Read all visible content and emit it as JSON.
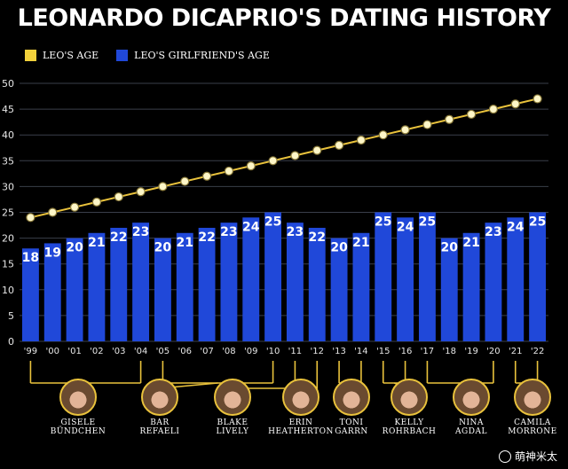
{
  "title": "LEONARDO DICAPRIO'S DATING HISTORY",
  "legend": {
    "leo_label": "LEO'S AGE",
    "gf_label": "LEO'S GIRLFRIEND'S AGE"
  },
  "colors": {
    "leo_line": "#e9c23c",
    "leo_marker_fill": "#fff7c8",
    "bar": "#2048d9",
    "bracket": "#e9c23c",
    "background": "#000000"
  },
  "chart_data": {
    "type": "bar",
    "title": "LEONARDO DICAPRIO'S DATING HISTORY",
    "categories": [
      "'99",
      "'00",
      "'01",
      "'02",
      "'03",
      "'04",
      "'05",
      "'06",
      "'07",
      "'08",
      "'09",
      "'10",
      "'11",
      "'12",
      "'13",
      "'14",
      "'15",
      "'16",
      "'17",
      "'18",
      "'19",
      "'20",
      "'21",
      "'22"
    ],
    "series": [
      {
        "name": "LEO'S GIRLFRIEND'S AGE",
        "type": "bar",
        "values": [
          18,
          19,
          20,
          21,
          22,
          23,
          20,
          21,
          22,
          23,
          24,
          25,
          23,
          22,
          20,
          21,
          25,
          24,
          25,
          20,
          21,
          23,
          24,
          25
        ]
      },
      {
        "name": "LEO'S AGE",
        "type": "line",
        "values": [
          24,
          25,
          26,
          27,
          28,
          29,
          30,
          31,
          32,
          33,
          34,
          35,
          36,
          37,
          38,
          39,
          40,
          41,
          42,
          43,
          44,
          45,
          46,
          47
        ]
      }
    ],
    "ylim": [
      0,
      50
    ],
    "yticks": [
      0,
      5,
      10,
      15,
      20,
      25,
      30,
      35,
      40,
      45,
      50
    ],
    "grid": true,
    "legend_position": "top-left"
  },
  "girlfriends": [
    {
      "name": "GISELE\nBÜNDCHEN",
      "from": 0,
      "to": 5
    },
    {
      "name": "BAR\nREFAELI",
      "from": 6,
      "to": 11
    },
    {
      "name": "BLAKE\nLIVELY",
      "from": 12,
      "to": 12
    },
    {
      "name": "ERIN\nHEATHERTON",
      "from": 13,
      "to": 13
    },
    {
      "name": "TONI\nGARRN",
      "from": 14,
      "to": 15
    },
    {
      "name": "KELLY\nROHRBACH",
      "from": 16,
      "to": 17
    },
    {
      "name": "NINA\nAGDAL",
      "from": 18,
      "to": 21
    },
    {
      "name": "CAMILA\nMORRONE",
      "from": 22,
      "to": 23
    }
  ],
  "watermark": "萌神米太"
}
